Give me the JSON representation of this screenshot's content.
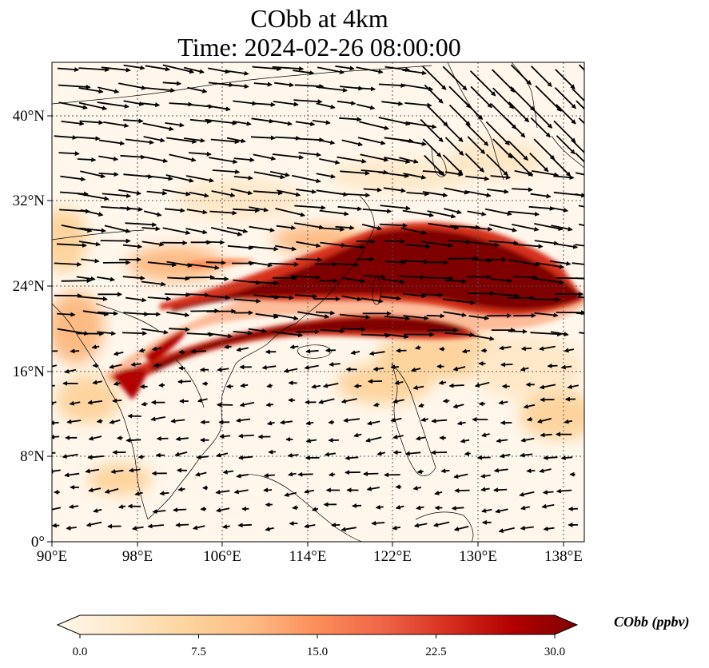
{
  "title_line1": "CObb at 4km",
  "title_line2": "Time: 2024-02-26 08:00:00",
  "x_ticks": [
    "90°E",
    "98°E",
    "106°E",
    "114°E",
    "122°E",
    "130°E",
    "138°E"
  ],
  "y_ticks": [
    "0°",
    "8°N",
    "16°N",
    "24°N",
    "32°N",
    "40°N"
  ],
  "colorbar": {
    "label": "CObb (ppbv)",
    "ticks": [
      "0.0",
      "7.5",
      "15.0",
      "22.5",
      "30.0"
    ],
    "min": 0,
    "max": 30,
    "colormap": "OrRd",
    "extend": "both",
    "colors": [
      "#fff7ec",
      "#fee8c8",
      "#fdd49e",
      "#fdbb84",
      "#fc8d59",
      "#ef6548",
      "#d7301f",
      "#b30000",
      "#7f0000"
    ]
  },
  "map": {
    "lon_range": [
      90,
      140
    ],
    "lat_range": [
      0,
      45
    ],
    "gridlines": true
  }
}
